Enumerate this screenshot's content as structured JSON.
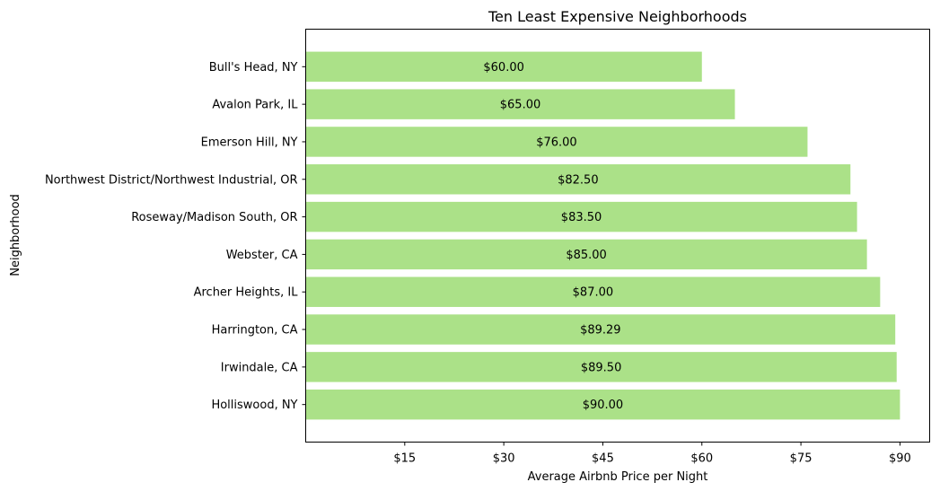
{
  "chart_data": {
    "type": "bar",
    "orientation": "horizontal",
    "title": "Ten Least Expensive Neighborhoods",
    "xlabel": "Average Airbnb Price per Night",
    "ylabel": "Neighborhood",
    "categories": [
      "Bull's Head, NY",
      "Avalon Park, IL",
      "Emerson Hill, NY",
      "Northwest District/Northwest Industrial, OR",
      "Roseway/Madison South, OR",
      "Webster, CA",
      "Archer Heights, IL",
      "Harrington, CA",
      "Irwindale, CA",
      "Holliswood, NY"
    ],
    "values": [
      60.0,
      65.0,
      76.0,
      82.5,
      83.5,
      85.0,
      87.0,
      89.29,
      89.5,
      90.0
    ],
    "data_labels": [
      "$60.00",
      "$65.00",
      "$76.00",
      "$82.50",
      "$83.50",
      "$85.00",
      "$87.00",
      "$89.29",
      "$89.50",
      "$90.00"
    ],
    "xticks": [
      15,
      30,
      45,
      60,
      75,
      90
    ],
    "xtick_labels": [
      "$15",
      "$30",
      "$45",
      "$60",
      "$75",
      "$90"
    ],
    "xlim": [
      0,
      94.5
    ],
    "bar_color": "#abe188",
    "grid": false
  }
}
